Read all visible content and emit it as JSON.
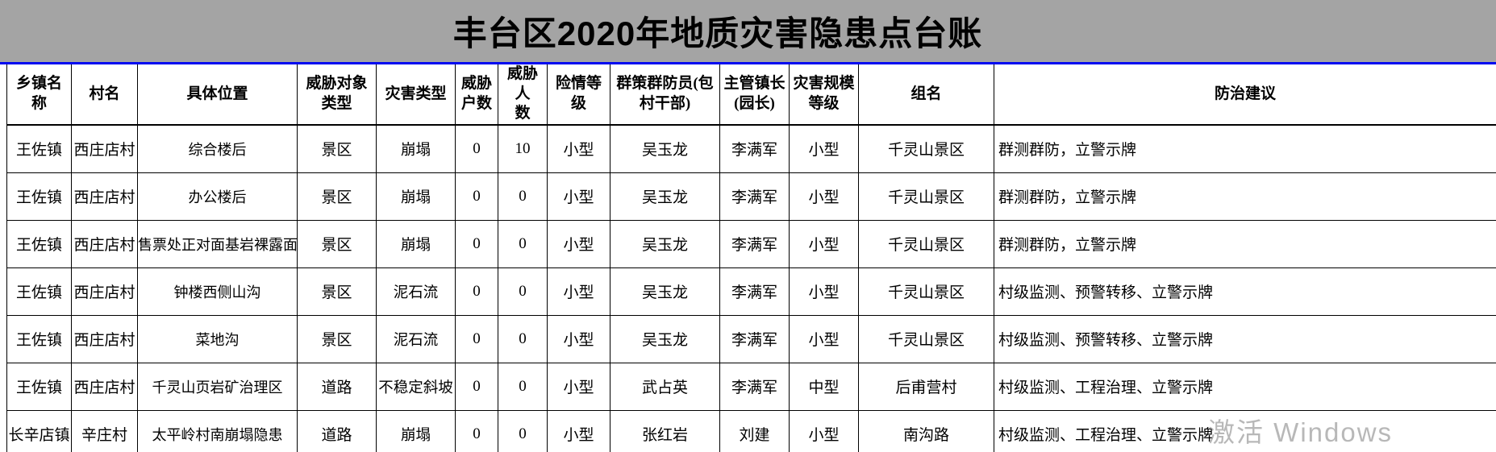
{
  "title": "丰台区2020年地质灾害隐患点台账",
  "watermark": "激活 Windows",
  "table": {
    "columns": [
      "乡镇名称",
      "村名",
      "具体位置",
      "威胁对象\n类型",
      "灾害类型",
      "威胁\n户数",
      "威胁人\n数",
      "险情等\n级",
      "群策群防员(包\n村干部)",
      "主管镇长\n(园长)",
      "灾害规模\n等级",
      "组名",
      "防治建议"
    ],
    "rows": [
      [
        "王佐镇",
        "西庄店村",
        "综合楼后",
        "景区",
        "崩塌",
        "0",
        "10",
        "小型",
        "吴玉龙",
        "李满军",
        "小型",
        "千灵山景区",
        "群测群防，立警示牌"
      ],
      [
        "王佐镇",
        "西庄店村",
        "办公楼后",
        "景区",
        "崩塌",
        "0",
        "0",
        "小型",
        "吴玉龙",
        "李满军",
        "小型",
        "千灵山景区",
        "群测群防，立警示牌"
      ],
      [
        "王佐镇",
        "西庄店村",
        "售票处正对面基岩裸露面",
        "景区",
        "崩塌",
        "0",
        "0",
        "小型",
        "吴玉龙",
        "李满军",
        "小型",
        "千灵山景区",
        "群测群防，立警示牌"
      ],
      [
        "王佐镇",
        "西庄店村",
        "钟楼西侧山沟",
        "景区",
        "泥石流",
        "0",
        "0",
        "小型",
        "吴玉龙",
        "李满军",
        "小型",
        "千灵山景区",
        "村级监测、预警转移、立警示牌"
      ],
      [
        "王佐镇",
        "西庄店村",
        "菜地沟",
        "景区",
        "泥石流",
        "0",
        "0",
        "小型",
        "吴玉龙",
        "李满军",
        "小型",
        "千灵山景区",
        "村级监测、预警转移、立警示牌"
      ],
      [
        "王佐镇",
        "西庄店村",
        "千灵山页岩矿治理区",
        "道路",
        "不稳定斜坡",
        "0",
        "0",
        "小型",
        "武占英",
        "李满军",
        "中型",
        "后甫营村",
        "村级监测、工程治理、立警示牌"
      ],
      [
        "长辛店镇",
        "辛庄村",
        "太平岭村南崩塌隐患",
        "道路",
        "崩塌",
        "0",
        "0",
        "小型",
        "张红岩",
        "刘建",
        "小型",
        "南沟路",
        "村级监测、工程治理、立警示牌"
      ]
    ]
  },
  "colors": {
    "title_bar_bg": "#a4a4a4",
    "divider_blue": "#0008f0",
    "grid_line": "#000000",
    "watermark_gray": "#7d7d7d"
  }
}
